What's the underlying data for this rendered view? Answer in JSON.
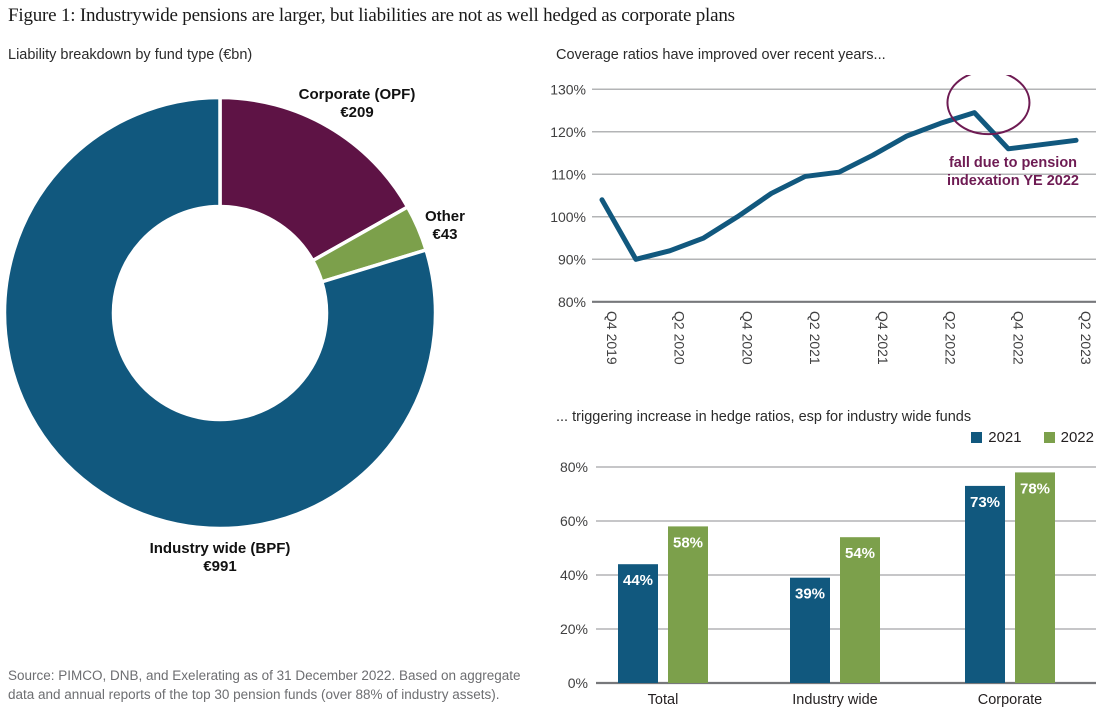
{
  "title": "Figure 1: Industrywide pensions are larger, but liabilities are not as well hedged as corporate plans",
  "colors": {
    "blue": "#11587e",
    "maroon": "#5e1345",
    "green": "#7ca04b",
    "annotation": "#6e1b53",
    "grid": "#b3b4b6",
    "axis": "#77787b"
  },
  "donut": {
    "subtitle": "Liability breakdown by fund type (€bn)",
    "labels": {
      "corporate": {
        "name": "Corporate (OPF)",
        "value": "€209"
      },
      "other": {
        "name": "Other",
        "value": "€43"
      },
      "industry": {
        "name": "Industry wide (BPF)",
        "value": "€991"
      }
    }
  },
  "line": {
    "subtitle": "Coverage ratios have improved over recent years...",
    "annotation_line1": "fall due to pension",
    "annotation_line2": "indexation YE 2022"
  },
  "bar": {
    "subtitle": "... triggering increase in hedge ratios, esp for industry wide funds"
  },
  "source": {
    "line1": "Source: PIMCO, DNB, and Exelerating as of 31 December 2022. Based on aggregate",
    "line2": "data and annual reports of the top 30 pension funds (over 88% of industry assets)."
  },
  "chart_data": [
    {
      "type": "pie",
      "subtype": "donut",
      "title": "Liability breakdown by fund type (€bn)",
      "slices": [
        {
          "label": "Corporate (OPF)",
          "value": 209,
          "color": "maroon"
        },
        {
          "label": "Other",
          "value": 43,
          "color": "green"
        },
        {
          "label": "Industry wide (BPF)",
          "value": 991,
          "color": "blue"
        }
      ],
      "start_angle_deg": 0,
      "direction": "clockwise"
    },
    {
      "type": "line",
      "title": "Coverage ratios have improved over recent years...",
      "x_tick_labels": [
        "Q4 2019",
        "Q2 2020",
        "Q4 2020",
        "Q2 2021",
        "Q4 2021",
        "Q2 2022",
        "Q4 2022",
        "Q2 2023"
      ],
      "values": [
        104,
        90,
        92,
        95,
        100,
        105.5,
        109.5,
        110.5,
        114.5,
        119,
        122,
        124.5,
        116,
        117,
        118
      ],
      "ylim": [
        80,
        130
      ],
      "y_step": 10,
      "y_tick_suffix": "%",
      "grid": true,
      "annotation": {
        "text": "fall due to pension indexation YE 2022",
        "circled_point_index": 11
      }
    },
    {
      "type": "bar",
      "title": "... triggering increase in hedge ratios, esp for industry wide funds",
      "categories": [
        "Total",
        "Industry wide",
        "Corporate"
      ],
      "series": [
        {
          "name": "2021",
          "color": "blue",
          "values": [
            44,
            39,
            73
          ]
        },
        {
          "name": "2022",
          "color": "green",
          "values": [
            58,
            54,
            78
          ]
        }
      ],
      "ylim": [
        0,
        80
      ],
      "y_step": 20,
      "y_tick_suffix": "%",
      "value_label_suffix": "%",
      "legend_position": "top-right",
      "grid": true
    }
  ]
}
